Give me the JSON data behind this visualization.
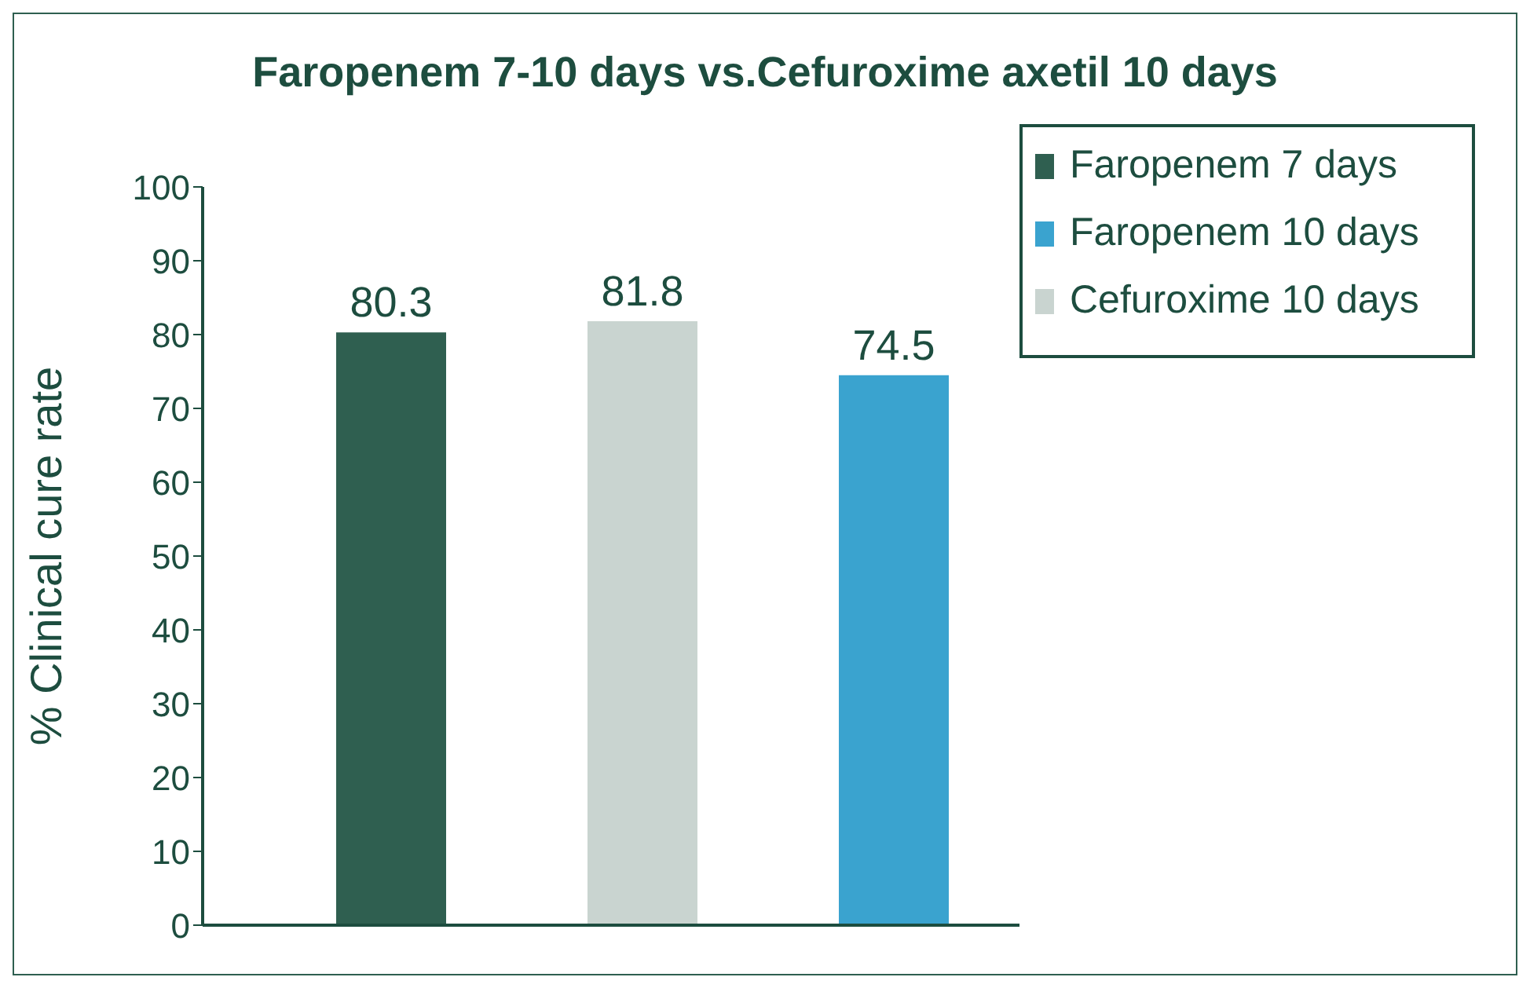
{
  "chart_data": {
    "type": "bar",
    "title": "Faropenem 7-10 days vs.Cefuroxime axetil 10 days",
    "ylabel": "% Clinical cure rate",
    "categories": [
      null,
      null,
      null
    ],
    "stacked": true,
    "series": [
      {
        "name": "Faropenem 7 days",
        "color": "#2f5f50",
        "values": [
          80.3,
          null,
          null
        ]
      },
      {
        "name": "Faropenem 10 days",
        "color": "#3aa3cf",
        "values": [
          null,
          null,
          74.5
        ]
      },
      {
        "name": "Cefuroxime 10 days",
        "color": "#c9d4d0",
        "values": [
          null,
          81.8,
          null
        ]
      }
    ],
    "ylim": [
      0,
      100
    ],
    "yticks": [
      0,
      10,
      20,
      30,
      40,
      50,
      60,
      70,
      80,
      90,
      100
    ],
    "grid": false,
    "legend": "top right",
    "data_labels": true
  }
}
